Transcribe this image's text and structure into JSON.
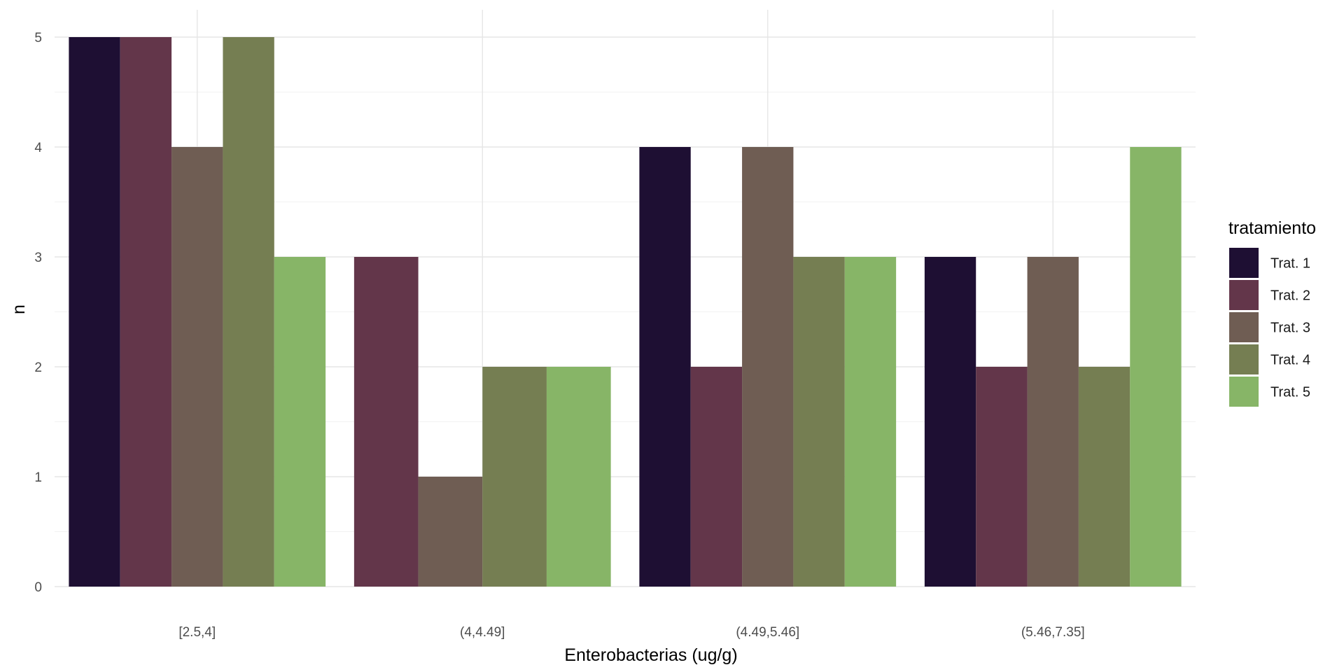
{
  "chart_data": {
    "type": "bar",
    "title": "",
    "xlabel": "Enterobacterias (ug/g)",
    "ylabel": "n",
    "ylim": [
      0,
      5.25
    ],
    "yticks": [
      "0",
      "1",
      "2",
      "3",
      "4",
      "5"
    ],
    "categories": [
      "[2.5,4]",
      "(4,4.49]",
      "(4.49,5.46]",
      "(5.46,7.35]"
    ],
    "grid": true,
    "legend": {
      "title": "tratamiento",
      "position": "right"
    },
    "series": [
      {
        "name": "Trat. 1",
        "color": "#1e0f33",
        "values": [
          5,
          0,
          4,
          3
        ]
      },
      {
        "name": "Trat. 2",
        "color": "#63364a",
        "values": [
          5,
          3,
          2,
          2
        ]
      },
      {
        "name": "Trat. 3",
        "color": "#6f5d53",
        "values": [
          4,
          1,
          4,
          3
        ]
      },
      {
        "name": "Trat. 4",
        "color": "#757e52",
        "values": [
          5,
          2,
          3,
          2
        ]
      },
      {
        "name": "Trat. 5",
        "color": "#87b567",
        "values": [
          3,
          2,
          3,
          4
        ]
      }
    ]
  }
}
